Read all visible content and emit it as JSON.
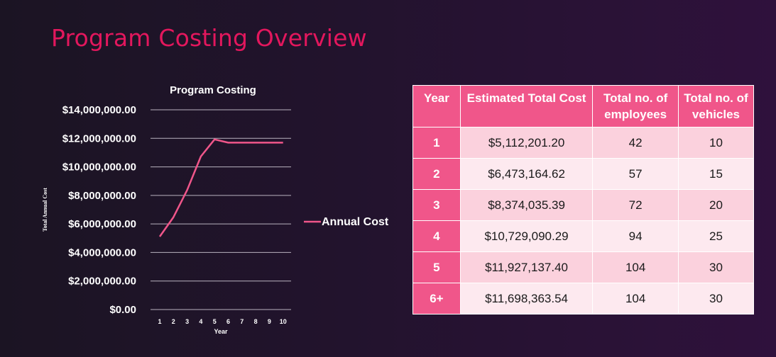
{
  "page": {
    "title": "Program Costing Overview"
  },
  "chart_data": {
    "type": "line",
    "title": "Program Costing",
    "xlabel": "Year",
    "ylabel": "Total Annual Cost",
    "x": [
      1,
      2,
      3,
      4,
      5,
      6,
      7,
      8,
      9,
      10
    ],
    "series": [
      {
        "name": "Annual Cost",
        "color": "#f0568a",
        "values": [
          5112201.2,
          6473164.62,
          8374035.39,
          10729090.29,
          11927137.4,
          11698363.54,
          11698363.54,
          11698363.54,
          11698363.54,
          11698363.54
        ]
      }
    ],
    "ylim": [
      0,
      14000000
    ],
    "yticks": [
      "$0.00",
      "$2,000,000.00",
      "$4,000,000.00",
      "$6,000,000.00",
      "$8,000,000.00",
      "$10,000,000.00",
      "$12,000,000.00",
      "$14,000,000.00"
    ],
    "xticks": [
      "1",
      "2",
      "3",
      "4",
      "5",
      "6",
      "7",
      "8",
      "9",
      "10"
    ],
    "grid": true,
    "legend": "right"
  },
  "table": {
    "headers": [
      "Year",
      "Estimated Total Cost",
      "Total no. of employees",
      "Total no. of vehicles"
    ],
    "rows": [
      [
        "1",
        "$5,112,201.20",
        "42",
        "10"
      ],
      [
        "2",
        "$6,473,164.62",
        "57",
        "15"
      ],
      [
        "3",
        "$8,374,035.39",
        "72",
        "20"
      ],
      [
        "4",
        "$10,729,090.29",
        "94",
        "25"
      ],
      [
        "5",
        "$11,927,137.40",
        "104",
        "30"
      ],
      [
        "6+",
        "$11,698,363.54",
        "104",
        "30"
      ]
    ]
  }
}
